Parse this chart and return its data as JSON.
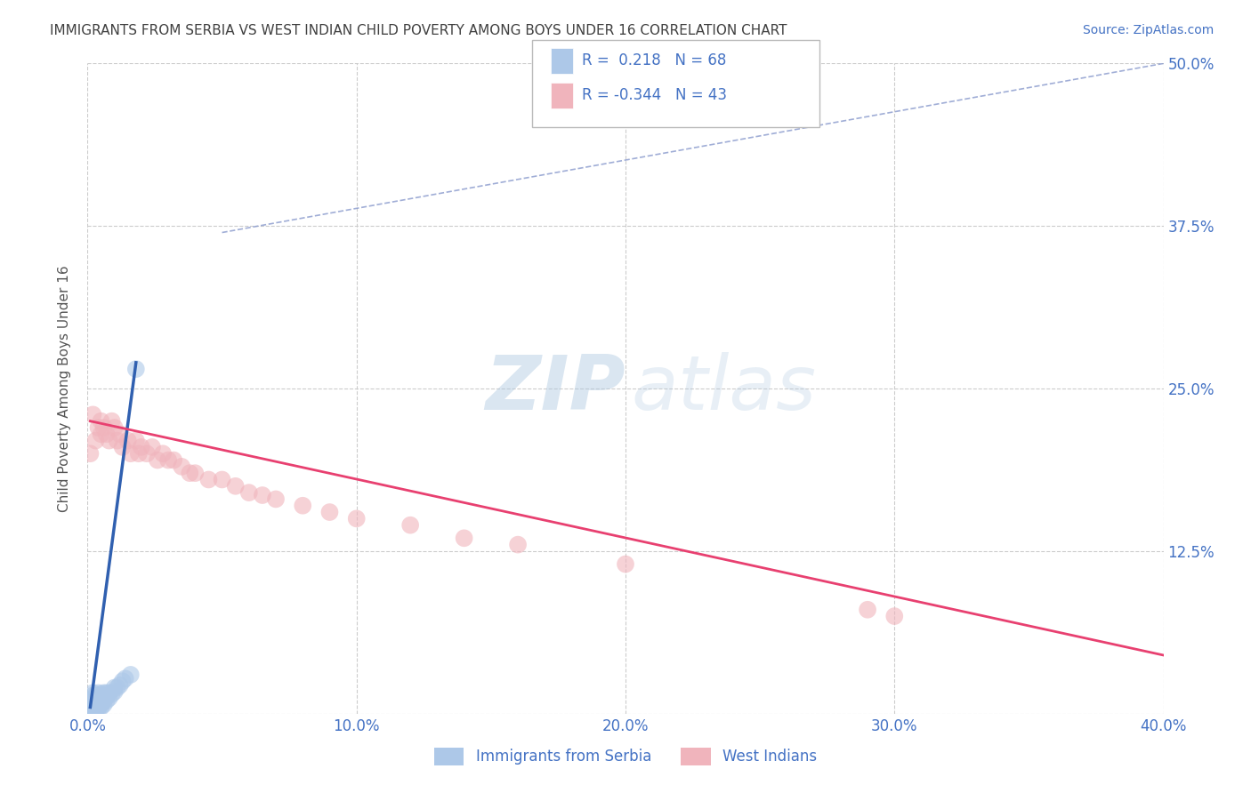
{
  "title": "IMMIGRANTS FROM SERBIA VS WEST INDIAN CHILD POVERTY AMONG BOYS UNDER 16 CORRELATION CHART",
  "source": "Source: ZipAtlas.com",
  "ylabel": "Child Poverty Among Boys Under 16",
  "xlim": [
    0.0,
    0.4
  ],
  "ylim": [
    0.0,
    0.5
  ],
  "xticks": [
    0.0,
    0.1,
    0.2,
    0.3,
    0.4
  ],
  "xticklabels": [
    "0.0%",
    "10.0%",
    "20.0%",
    "30.0%",
    "40.0%"
  ],
  "yticks": [
    0.0,
    0.125,
    0.25,
    0.375,
    0.5
  ],
  "yticklabels": [
    "",
    "12.5%",
    "25.0%",
    "37.5%",
    "50.0%"
  ],
  "legend_labels": [
    "Immigrants from Serbia",
    "West Indians"
  ],
  "r_serbia": 0.218,
  "n_serbia": 68,
  "r_westindian": -0.344,
  "n_westindian": 43,
  "serbia_color": "#adc8e8",
  "westindian_color": "#f0b4bc",
  "serbia_line_color": "#3060b0",
  "westindian_line_color": "#e84070",
  "dashed_line_color": "#8899cc",
  "background_color": "#ffffff",
  "grid_color": "#cccccc",
  "title_color": "#404040",
  "axis_color": "#4472c4",
  "serbia_x": [
    0.001,
    0.001,
    0.001,
    0.001,
    0.001,
    0.001,
    0.001,
    0.001,
    0.001,
    0.001,
    0.001,
    0.001,
    0.001,
    0.001,
    0.001,
    0.001,
    0.001,
    0.002,
    0.002,
    0.002,
    0.002,
    0.002,
    0.002,
    0.002,
    0.002,
    0.002,
    0.002,
    0.002,
    0.002,
    0.002,
    0.003,
    0.003,
    0.003,
    0.003,
    0.003,
    0.003,
    0.003,
    0.003,
    0.004,
    0.004,
    0.004,
    0.004,
    0.004,
    0.004,
    0.005,
    0.005,
    0.005,
    0.005,
    0.005,
    0.005,
    0.006,
    0.006,
    0.006,
    0.006,
    0.007,
    0.007,
    0.007,
    0.008,
    0.008,
    0.009,
    0.01,
    0.01,
    0.011,
    0.012,
    0.013,
    0.014,
    0.016,
    0.018
  ],
  "serbia_y": [
    0.0,
    0.0,
    0.0,
    0.0,
    0.001,
    0.001,
    0.001,
    0.002,
    0.002,
    0.003,
    0.003,
    0.004,
    0.005,
    0.006,
    0.007,
    0.008,
    0.01,
    0.0,
    0.001,
    0.002,
    0.003,
    0.004,
    0.005,
    0.006,
    0.007,
    0.008,
    0.01,
    0.012,
    0.014,
    0.016,
    0.0,
    0.002,
    0.004,
    0.006,
    0.008,
    0.01,
    0.012,
    0.014,
    0.004,
    0.006,
    0.008,
    0.01,
    0.012,
    0.016,
    0.005,
    0.007,
    0.009,
    0.011,
    0.013,
    0.015,
    0.007,
    0.01,
    0.013,
    0.016,
    0.01,
    0.013,
    0.016,
    0.012,
    0.016,
    0.015,
    0.017,
    0.02,
    0.02,
    0.022,
    0.025,
    0.027,
    0.03,
    0.265
  ],
  "westindian_x": [
    0.001,
    0.002,
    0.003,
    0.004,
    0.005,
    0.005,
    0.006,
    0.007,
    0.008,
    0.009,
    0.01,
    0.011,
    0.012,
    0.013,
    0.015,
    0.016,
    0.018,
    0.019,
    0.02,
    0.022,
    0.024,
    0.026,
    0.028,
    0.03,
    0.032,
    0.035,
    0.038,
    0.04,
    0.045,
    0.05,
    0.055,
    0.06,
    0.065,
    0.07,
    0.08,
    0.09,
    0.1,
    0.12,
    0.14,
    0.16,
    0.2,
    0.29,
    0.3
  ],
  "westindian_y": [
    0.2,
    0.23,
    0.21,
    0.22,
    0.225,
    0.215,
    0.22,
    0.215,
    0.21,
    0.225,
    0.22,
    0.21,
    0.215,
    0.205,
    0.21,
    0.2,
    0.21,
    0.2,
    0.205,
    0.2,
    0.205,
    0.195,
    0.2,
    0.195,
    0.195,
    0.19,
    0.185,
    0.185,
    0.18,
    0.18,
    0.175,
    0.17,
    0.168,
    0.165,
    0.16,
    0.155,
    0.15,
    0.145,
    0.135,
    0.13,
    0.115,
    0.08,
    0.075
  ],
  "serbia_trendline_x": [
    0.001,
    0.018
  ],
  "serbia_trendline_y": [
    0.005,
    0.27
  ],
  "westindian_trendline_x": [
    0.001,
    0.4
  ],
  "westindian_trendline_y": [
    0.225,
    0.045
  ],
  "dashed_line_x": [
    0.05,
    0.4
  ],
  "dashed_line_y": [
    0.37,
    0.5
  ]
}
